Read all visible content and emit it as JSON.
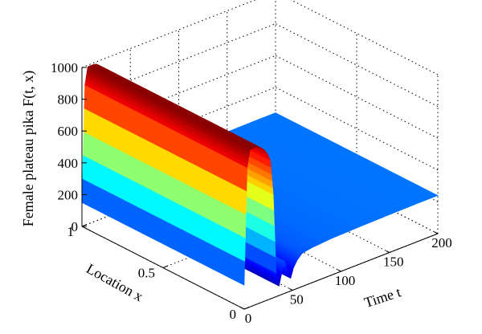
{
  "chart_data": {
    "type": "surface",
    "title": "",
    "zlabel": "Female plateau pika F(t, x)",
    "xlabel": "Time t",
    "ylabel": "Location x",
    "xlim": [
      0,
      200
    ],
    "ylim": [
      0,
      1
    ],
    "zlim": [
      0,
      1000
    ],
    "x_ticks": [
      "0",
      "50",
      "100",
      "150",
      "200"
    ],
    "y_ticks": [
      "0",
      "0.5",
      "1"
    ],
    "z_ticks": [
      "0",
      "200",
      "400",
      "600",
      "800",
      "1000"
    ],
    "colormap": "jet",
    "grid": true,
    "profile_t": [
      0,
      3,
      6,
      9,
      12,
      15,
      18,
      21,
      24,
      27,
      30,
      33,
      36,
      39,
      42,
      45,
      48,
      51,
      55,
      60,
      70,
      90,
      120,
      150,
      180,
      200
    ],
    "profile_F": [
      150,
      880,
      990,
      990,
      990,
      985,
      970,
      950,
      920,
      870,
      650,
      150,
      60,
      140,
      200,
      110,
      80,
      140,
      180,
      210,
      220,
      230,
      235,
      238,
      240,
      240
    ],
    "profile_description": "F(t,x) is nearly uniform in x; values along t shown"
  }
}
